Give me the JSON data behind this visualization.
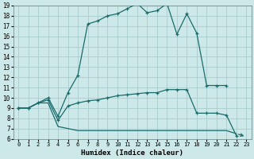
{
  "xlabel": "Humidex (Indice chaleur)",
  "bg_color": "#cce8e8",
  "grid_color": "#aacccc",
  "line_color": "#1a6b6b",
  "xlim": [
    -0.5,
    23.5
  ],
  "ylim": [
    6,
    19
  ],
  "xticks": [
    0,
    1,
    2,
    3,
    4,
    5,
    6,
    7,
    8,
    9,
    10,
    11,
    12,
    13,
    14,
    15,
    16,
    17,
    18,
    19,
    20,
    21,
    22,
    23
  ],
  "yticks": [
    6,
    7,
    8,
    9,
    10,
    11,
    12,
    13,
    14,
    15,
    16,
    17,
    18,
    19
  ],
  "line1": {
    "x": [
      0,
      1,
      2,
      3,
      4,
      5,
      6,
      7,
      8,
      9,
      10,
      11,
      12,
      13,
      14,
      15,
      16,
      17,
      18,
      19,
      20,
      21
    ],
    "y": [
      9.0,
      9.0,
      9.5,
      10.0,
      8.2,
      10.5,
      12.2,
      17.2,
      17.5,
      18.0,
      18.2,
      18.7,
      19.2,
      18.3,
      18.5,
      19.2,
      16.2,
      18.2,
      16.3,
      11.2,
      11.2,
      11.2
    ],
    "marker": true
  },
  "line2": {
    "x": [
      0,
      1,
      2,
      3,
      4,
      5,
      6,
      7,
      8,
      9,
      10,
      11,
      12,
      13,
      14,
      15,
      16,
      17,
      18,
      19,
      20,
      21,
      22
    ],
    "y": [
      9.0,
      9.0,
      9.5,
      9.8,
      7.8,
      9.2,
      9.5,
      9.7,
      9.8,
      10.0,
      10.2,
      10.3,
      10.4,
      10.5,
      10.5,
      10.8,
      10.8,
      10.8,
      8.5,
      8.5,
      8.5,
      8.3,
      6.3
    ],
    "marker": true
  },
  "line3": {
    "x": [
      0,
      1,
      2,
      3,
      4,
      5,
      6,
      7,
      8,
      9,
      10,
      11,
      12,
      13,
      14,
      15,
      16,
      17,
      18,
      19,
      20,
      21,
      22,
      23
    ],
    "y": [
      9.0,
      9.0,
      9.5,
      9.5,
      7.2,
      7.0,
      6.8,
      6.8,
      6.8,
      6.8,
      6.8,
      6.8,
      6.8,
      6.8,
      6.8,
      6.8,
      6.8,
      6.8,
      6.8,
      6.8,
      6.8,
      6.8,
      6.5,
      6.2
    ],
    "marker": false,
    "arrow_end": true
  }
}
